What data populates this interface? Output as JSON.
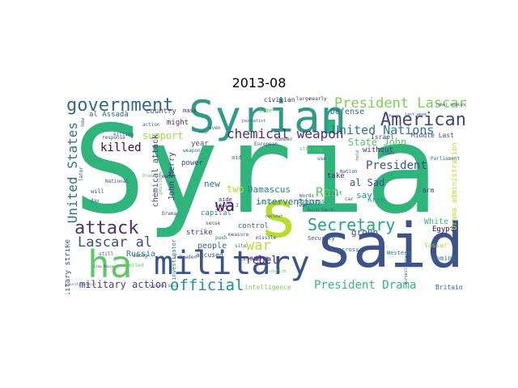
{
  "figure": {
    "title": "2013-08"
  },
  "words": [
    {
      "t": "Syria",
      "c": "#2fb47c"
    },
    {
      "t": "said",
      "c": "#3b528b"
    },
    {
      "t": "Syrian",
      "c": "#2c9c86"
    },
    {
      "t": "military",
      "c": "#3a548c"
    },
    {
      "t": "ha",
      "c": "#5ec962"
    },
    {
      "t": "s",
      "c": "#b5de2b"
    },
    {
      "t": "government",
      "c": "#31688e"
    },
    {
      "t": "attack",
      "c": "#46327e"
    },
    {
      "t": "wa",
      "c": "#440154"
    },
    {
      "t": "American",
      "c": "#414487"
    },
    {
      "t": "President Lascar",
      "c": "#7ad151"
    },
    {
      "t": "United Nations",
      "c": "#2a788e"
    },
    {
      "t": "chemical weapon",
      "c": "#472d7b"
    },
    {
      "t": "Secretary",
      "c": "#22a884"
    },
    {
      "t": "official",
      "c": "#21918c"
    },
    {
      "t": "Lascar al",
      "c": "#3e4a89"
    },
    {
      "t": "President Drama",
      "c": "#35b779"
    },
    {
      "t": "United States",
      "c": "#2c728e"
    },
    {
      "t": "war",
      "c": "#b5de2b"
    },
    {
      "t": "rebel",
      "c": "#482878"
    },
    {
      "t": "Ran",
      "c": "#5ec962"
    },
    {
      "t": "President",
      "c": "#3b528b"
    },
    {
      "t": "killed",
      "c": "#440154"
    },
    {
      "t": "support",
      "c": "#9fda3a"
    },
    {
      "t": "State John",
      "c": "#54c568"
    },
    {
      "t": "military action",
      "c": "#433e85"
    },
    {
      "t": "group",
      "c": "#3e4989"
    },
    {
      "t": "Damascus",
      "c": "#26828e"
    },
    {
      "t": "intervention",
      "c": "#31688e"
    },
    {
      "t": "two",
      "c": "#b5de2b"
    },
    {
      "t": "new",
      "c": "#2d708e"
    },
    {
      "t": "al Sad",
      "c": "#3b528b"
    },
    {
      "t": "say",
      "c": "#1f9a8a"
    },
    {
      "t": "without",
      "c": "#472d7b"
    },
    {
      "t": "John Merry",
      "c": "#46337e"
    },
    {
      "t": "chemical attack",
      "c": "#433e85"
    },
    {
      "t": "Russia",
      "c": "#2a788e"
    },
    {
      "t": "people",
      "c": "#31688e"
    },
    {
      "t": "White",
      "c": "#35b779"
    },
    {
      "t": "Egypt",
      "c": "#440154"
    },
    {
      "t": "country",
      "c": "#3b528b"
    },
    {
      "t": "al Assadâ",
      "c": "#31688e"
    },
    {
      "t": "capital",
      "c": "#26828e"
    },
    {
      "t": "Assadâ s",
      "c": "#443983"
    },
    {
      "t": "Israel",
      "c": "#3b528b"
    },
    {
      "t": "Arab",
      "c": "#1fa187"
    },
    {
      "t": "power",
      "c": "#404387"
    },
    {
      "t": "year",
      "c": "#3b528b"
    },
    {
      "t": "might",
      "c": "#472c7a"
    },
    {
      "t": "mass",
      "c": "#482475"
    },
    {
      "t": "strike",
      "c": "#46337e"
    },
    {
      "t": "control",
      "c": "#2d708e"
    },
    {
      "t": "accused",
      "c": "#3b528b"
    },
    {
      "t": "Congress",
      "c": "#2a788e"
    },
    {
      "t": "Middle Last",
      "c": "#3f4889"
    },
    {
      "t": "Defense",
      "c": "#31688e"
    },
    {
      "t": "take",
      "c": "#472d7b"
    },
    {
      "t": "visit",
      "c": "#21918c"
    },
    {
      "t": "Western",
      "c": "#2a788e"
    },
    {
      "t": "Britain",
      "c": "#31688e"
    },
    {
      "t": "across",
      "c": "#2a788e"
    },
    {
      "t": "Security",
      "c": "#3b528b"
    },
    {
      "t": "intelligence",
      "c": "#7ad151"
    },
    {
      "t": "coming",
      "c": "#2a788e"
    },
    {
      "t": "arm",
      "c": "#433e85"
    },
    {
      "t": "Drama administration",
      "c": "#c8e020"
    },
    {
      "t": "military strike",
      "c": "#3b528b"
    },
    {
      "t": "aide",
      "c": "#472d7b"
    },
    {
      "t": "investigator",
      "c": "#2a788e"
    },
    {
      "t": "Yassar",
      "c": "#9fda3a"
    },
    {
      "t": "civilian",
      "c": "#482878"
    },
    {
      "t": "large",
      "c": "#3b528b"
    },
    {
      "t": "nearly",
      "c": "#472d7b"
    },
    {
      "t": "Parliament",
      "c": "#2a788e"
    },
    {
      "t": "Nation",
      "c": "#3b528b"
    },
    {
      "t": "missile",
      "c": "#3b528b"
    },
    {
      "t": "leader",
      "c": "#472d7b"
    },
    {
      "t": "Edward J",
      "c": "#3b528b"
    },
    {
      "t": "National",
      "c": "#3b528b"
    },
    {
      "t": "will",
      "c": "#31688e"
    },
    {
      "t": "day",
      "c": "#31688e"
    },
    {
      "t": "later",
      "c": "#3b528b"
    },
    {
      "t": "response",
      "c": "#3b528b"
    },
    {
      "t": "action",
      "c": "#31688e"
    },
    {
      "t": "weapon",
      "c": "#31688e"
    },
    {
      "t": "still",
      "c": "#3b528b"
    },
    {
      "t": "limited",
      "c": "#5ec962"
    },
    {
      "t": "among",
      "c": "#3b528b"
    },
    {
      "t": "push",
      "c": "#31688e"
    },
    {
      "t": "sense",
      "c": "#3b528b"
    },
    {
      "t": "Drama",
      "c": "#3b528b"
    },
    {
      "t": "violence",
      "c": "#35b779"
    },
    {
      "t": "measure",
      "c": "#3b528b"
    },
    {
      "t": "time",
      "c": "#5ec962"
    },
    {
      "t": "European",
      "c": "#3b528b"
    },
    {
      "t": "number",
      "c": "#3b528b"
    },
    {
      "t": "strategy",
      "c": "#5ec962"
    },
    {
      "t": "Words",
      "c": "#31688e"
    },
    {
      "t": "fear",
      "c": "#3b528b"
    },
    {
      "t": "car",
      "c": "#3b528b"
    },
    {
      "t": "four",
      "c": "#3b528b"
    },
    {
      "t": "issue",
      "c": "#3b528b"
    },
    {
      "t": "J Bowden",
      "c": "#3b528b"
    },
    {
      "t": "Security Council",
      "c": "#3b528b"
    },
    {
      "t": "Rochester David",
      "c": "#3b528b"
    },
    {
      "t": "Drama",
      "c": "#5ec962"
    },
    {
      "t": "killing",
      "c": "#3b528b"
    },
    {
      "t": "possible",
      "c": "#5ec962"
    },
    {
      "t": "even",
      "c": "#3b528b"
    },
    {
      "t": "aid",
      "c": "#31688e"
    },
    {
      "t": "site",
      "c": "#31688e"
    },
    {
      "t": "near",
      "c": "#3b528b"
    },
    {
      "t": "last week",
      "c": "#3b528b"
    },
    {
      "t": "rebel seeking",
      "c": "#3b528b"
    },
    {
      "t": "now",
      "c": "#3b528b"
    },
    {
      "t": "use",
      "c": "#3b528b"
    },
    {
      "t": "hold",
      "c": "#3b528b"
    },
    {
      "t": "surveillance",
      "c": "#3b528b"
    },
    {
      "t": "nuclear",
      "c": "#3b528b"
    },
    {
      "t": "journalist",
      "c": "#3b528b"
    },
    {
      "t": "Social Cameron",
      "c": "#3b528b"
    },
    {
      "t": "Lima Massan",
      "c": "#3b528b"
    },
    {
      "t": "confirm",
      "c": "#5ec962"
    }
  ]
}
